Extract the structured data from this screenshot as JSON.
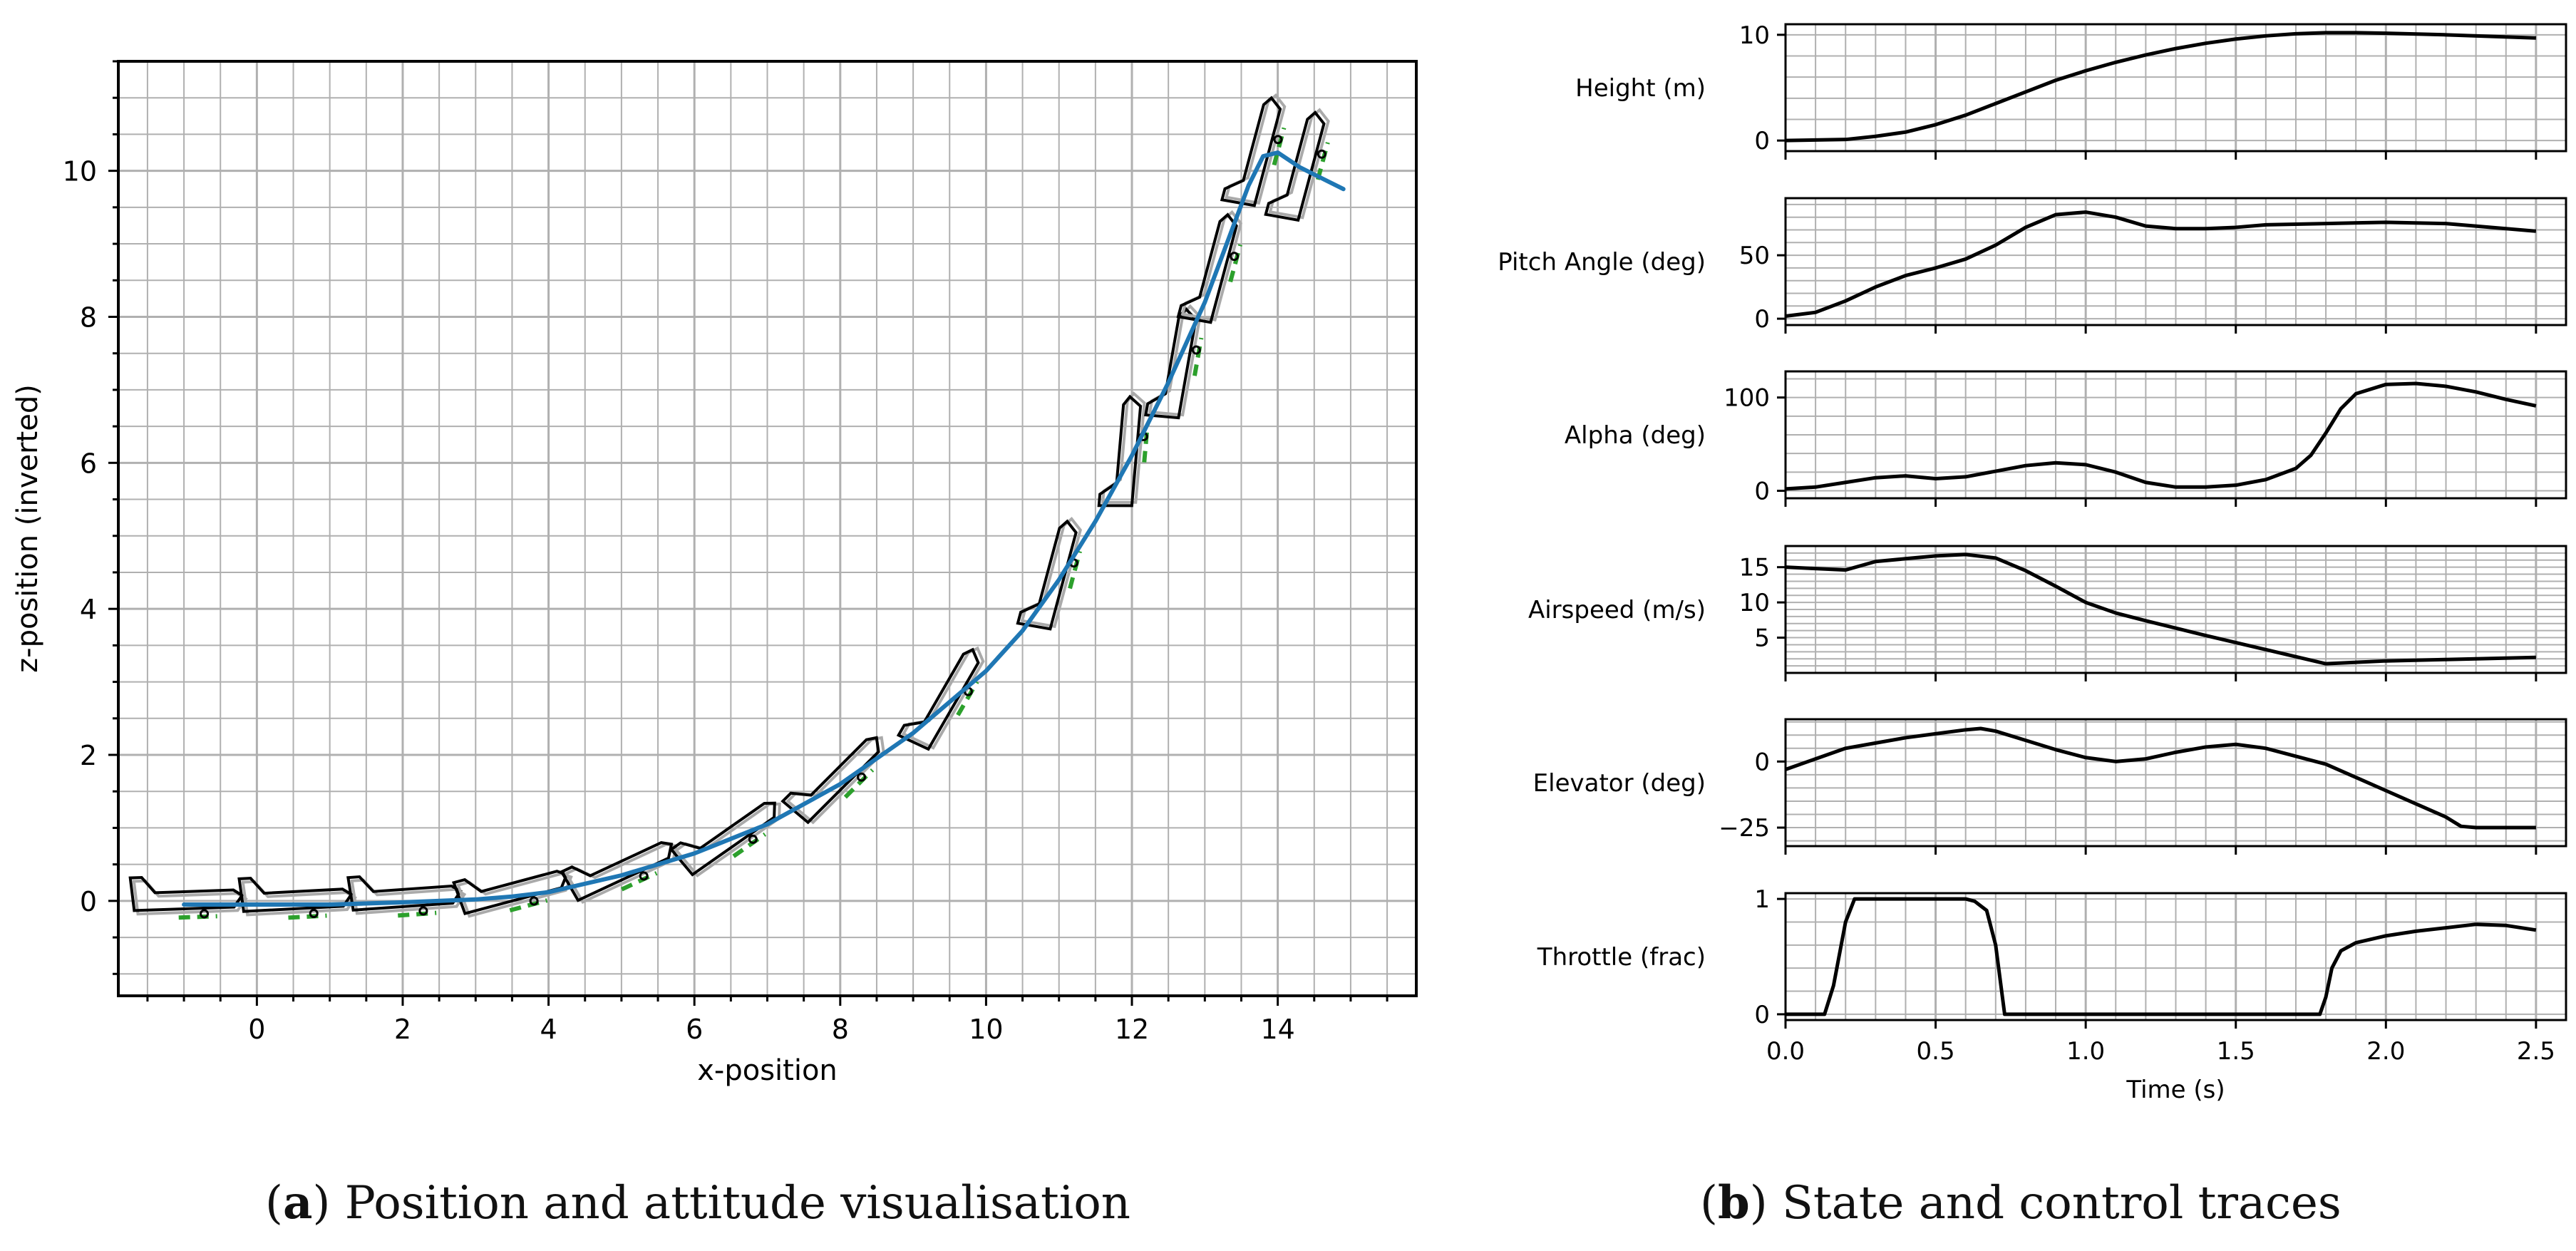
{
  "colors": {
    "trajectory": "#1f77b4",
    "airframe": "#000000",
    "airframe_shadow": "#aaaaaa",
    "control_surface": "#2ca02c",
    "trace": "#000000",
    "grid": "#b0b0b0"
  },
  "captions": {
    "a": {
      "label": "a",
      "text": "Position and attitude visualisation"
    },
    "b": {
      "label": "b",
      "text": "State and control traces"
    }
  },
  "chart_data": [
    {
      "id": "a",
      "type": "line",
      "title": "",
      "xlabel": "x-position",
      "ylabel": "z-position (inverted)",
      "xlim": [
        -1.9,
        15.9
      ],
      "ylim": [
        -1.3,
        11.5
      ],
      "xticks": [
        0,
        2,
        4,
        6,
        8,
        10,
        12,
        14
      ],
      "yticks": [
        0,
        2,
        4,
        6,
        8,
        10
      ],
      "grid": true,
      "series": [
        {
          "name": "trajectory",
          "x": [
            -1.0,
            0.0,
            1.0,
            2.0,
            3.0,
            3.5,
            4.0,
            5.0,
            6.0,
            7.0,
            8.0,
            9.0,
            10.0,
            10.5,
            11.0,
            11.5,
            12.0,
            12.5,
            13.0,
            13.3,
            13.6,
            13.8,
            14.0,
            14.3,
            14.6,
            14.9
          ],
          "y": [
            -0.05,
            -0.05,
            -0.05,
            -0.02,
            0.02,
            0.06,
            0.12,
            0.35,
            0.65,
            1.05,
            1.6,
            2.3,
            3.15,
            3.7,
            4.4,
            5.2,
            6.1,
            7.1,
            8.2,
            9.0,
            9.8,
            10.2,
            10.25,
            10.05,
            9.9,
            9.75
          ]
        }
      ],
      "airframes": [
        {
          "x": -1.0,
          "z": -0.05,
          "pitch": 2
        },
        {
          "x": 0.5,
          "z": -0.05,
          "pitch": 3
        },
        {
          "x": 2.0,
          "z": -0.02,
          "pitch": 4
        },
        {
          "x": 3.5,
          "z": 0.06,
          "pitch": 15
        },
        {
          "x": 5.0,
          "z": 0.35,
          "pitch": 25
        },
        {
          "x": 6.5,
          "z": 0.8,
          "pitch": 35
        },
        {
          "x": 8.0,
          "z": 1.6,
          "pitch": 45
        },
        {
          "x": 9.5,
          "z": 2.7,
          "pitch": 60
        },
        {
          "x": 11.0,
          "z": 4.4,
          "pitch": 75
        },
        {
          "x": 12.0,
          "z": 6.1,
          "pitch": 85
        },
        {
          "x": 12.7,
          "z": 7.3,
          "pitch": 80
        },
        {
          "x": 13.2,
          "z": 8.6,
          "pitch": 75
        },
        {
          "x": 13.8,
          "z": 10.2,
          "pitch": 75
        },
        {
          "x": 14.4,
          "z": 10.0,
          "pitch": 75
        }
      ]
    },
    {
      "id": "b",
      "type": "line",
      "xlabel": "Time (s)",
      "xlim": [
        0.0,
        2.6
      ],
      "xticks": [
        0.0,
        0.5,
        1.0,
        1.5,
        2.0,
        2.5
      ],
      "xtick_labels": [
        "0.0",
        "0.5",
        "1.0",
        "1.5",
        "2.0",
        "2.5"
      ],
      "grid": true,
      "panels": [
        {
          "label": "Height (m)",
          "ylim": [
            -1,
            11
          ],
          "yticks": [
            0,
            10
          ],
          "ytick_labels": [
            "0",
            "10"
          ],
          "t": [
            0.0,
            0.2,
            0.3,
            0.4,
            0.5,
            0.6,
            0.7,
            0.8,
            0.9,
            1.0,
            1.1,
            1.2,
            1.3,
            1.4,
            1.5,
            1.6,
            1.7,
            1.8,
            1.9,
            2.0,
            2.2,
            2.5
          ],
          "values": [
            0.0,
            0.1,
            0.4,
            0.8,
            1.5,
            2.4,
            3.5,
            4.6,
            5.7,
            6.6,
            7.4,
            8.1,
            8.7,
            9.2,
            9.6,
            9.9,
            10.1,
            10.2,
            10.2,
            10.15,
            10.0,
            9.7
          ]
        },
        {
          "label": "Pitch Angle (deg)",
          "ylim": [
            -5,
            95
          ],
          "yticks": [
            0,
            50
          ],
          "ytick_labels": [
            "0",
            "50"
          ],
          "t": [
            0.0,
            0.1,
            0.2,
            0.3,
            0.4,
            0.5,
            0.6,
            0.7,
            0.8,
            0.9,
            1.0,
            1.1,
            1.2,
            1.3,
            1.4,
            1.5,
            1.6,
            1.8,
            2.0,
            2.2,
            2.5
          ],
          "values": [
            2,
            5,
            14,
            25,
            34,
            40,
            47,
            58,
            72,
            82,
            84,
            80,
            73,
            71,
            71,
            72,
            74,
            75,
            76,
            75,
            69
          ]
        },
        {
          "label": "Alpha (deg)",
          "ylim": [
            -8,
            128
          ],
          "yticks": [
            0,
            100
          ],
          "ytick_labels": [
            "0",
            "100"
          ],
          "t": [
            0.0,
            0.1,
            0.2,
            0.3,
            0.4,
            0.5,
            0.6,
            0.7,
            0.8,
            0.9,
            1.0,
            1.1,
            1.2,
            1.3,
            1.4,
            1.5,
            1.6,
            1.7,
            1.75,
            1.8,
            1.85,
            1.9,
            2.0,
            2.1,
            2.2,
            2.3,
            2.4,
            2.5
          ],
          "values": [
            2,
            4,
            9,
            14,
            16,
            13,
            15,
            21,
            27,
            30,
            28,
            20,
            9,
            4,
            4,
            6,
            12,
            24,
            38,
            62,
            88,
            104,
            114,
            115,
            112,
            106,
            98,
            91
          ]
        },
        {
          "label": "Airspeed (m/s)",
          "ylim": [
            0,
            18
          ],
          "yticks": [
            5,
            10,
            15
          ],
          "ytick_labels": [
            "5",
            "10",
            "15"
          ],
          "t": [
            0.0,
            0.1,
            0.2,
            0.3,
            0.4,
            0.5,
            0.6,
            0.7,
            0.8,
            0.9,
            1.0,
            1.1,
            1.2,
            1.4,
            1.6,
            1.8,
            1.9,
            2.0,
            2.2,
            2.5
          ],
          "values": [
            15.0,
            14.8,
            14.6,
            15.8,
            16.2,
            16.6,
            16.8,
            16.3,
            14.5,
            12.3,
            10.0,
            8.5,
            7.4,
            5.3,
            3.3,
            1.3,
            1.5,
            1.7,
            1.9,
            2.2
          ]
        },
        {
          "label": "Elevator (deg)",
          "ylim": [
            -32,
            16
          ],
          "yticks": [
            -25,
            0
          ],
          "ytick_labels": [
            "−25",
            "0"
          ],
          "t": [
            0.0,
            0.1,
            0.2,
            0.3,
            0.4,
            0.5,
            0.6,
            0.65,
            0.7,
            0.8,
            0.9,
            1.0,
            1.1,
            1.2,
            1.3,
            1.4,
            1.5,
            1.6,
            1.7,
            1.8,
            1.9,
            2.0,
            2.1,
            2.2,
            2.25,
            2.3,
            2.5
          ],
          "values": [
            -3,
            1,
            5,
            7,
            9,
            10.5,
            12,
            12.5,
            11.5,
            8,
            4.5,
            1.5,
            0,
            1,
            3.5,
            5.5,
            6.5,
            5,
            2,
            -1,
            -6,
            -11,
            -16,
            -21,
            -24.5,
            -25,
            -25
          ]
        },
        {
          "label": "Throttle (frac)",
          "ylim": [
            -0.05,
            1.05
          ],
          "yticks": [
            0,
            1
          ],
          "ytick_labels": [
            "0",
            "1"
          ],
          "t": [
            0.0,
            0.13,
            0.16,
            0.2,
            0.23,
            0.6,
            0.63,
            0.67,
            0.7,
            0.73,
            1.78,
            1.8,
            1.82,
            1.85,
            1.9,
            2.0,
            2.1,
            2.3,
            2.4,
            2.5
          ],
          "values": [
            0,
            0,
            0.25,
            0.8,
            1.0,
            1.0,
            0.98,
            0.9,
            0.6,
            0.0,
            0.0,
            0.15,
            0.4,
            0.55,
            0.62,
            0.68,
            0.72,
            0.78,
            0.77,
            0.73
          ]
        }
      ]
    }
  ]
}
